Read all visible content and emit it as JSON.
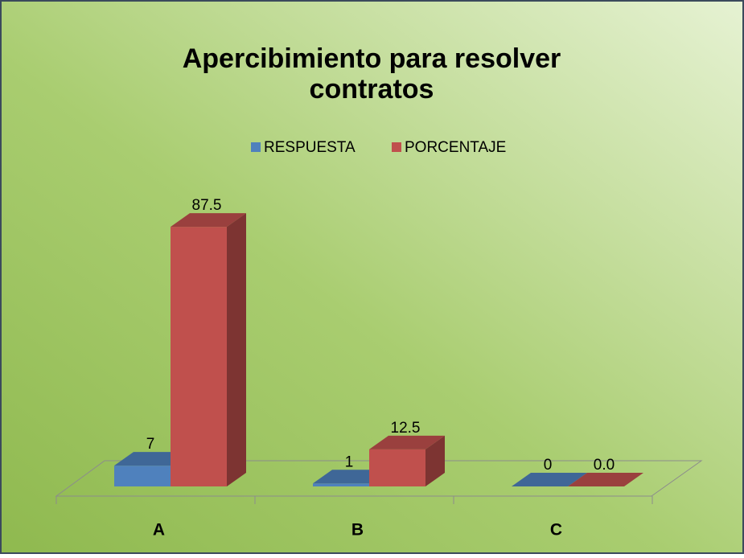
{
  "chart_data": {
    "type": "bar3d",
    "title": "Apercibimiento para resolver contratos",
    "categories": [
      "A",
      "B",
      "C"
    ],
    "series": [
      {
        "name": "RESPUESTA",
        "color": "#4f81bd",
        "values": [
          7,
          1,
          0
        ]
      },
      {
        "name": "PORCENTAJE",
        "color": "#c0504d",
        "values": [
          87.5,
          12.5,
          0
        ],
        "value_labels": [
          "87.5",
          "12.5",
          "0.0"
        ]
      }
    ],
    "ylim": [
      0,
      100
    ],
    "legend": "top"
  }
}
